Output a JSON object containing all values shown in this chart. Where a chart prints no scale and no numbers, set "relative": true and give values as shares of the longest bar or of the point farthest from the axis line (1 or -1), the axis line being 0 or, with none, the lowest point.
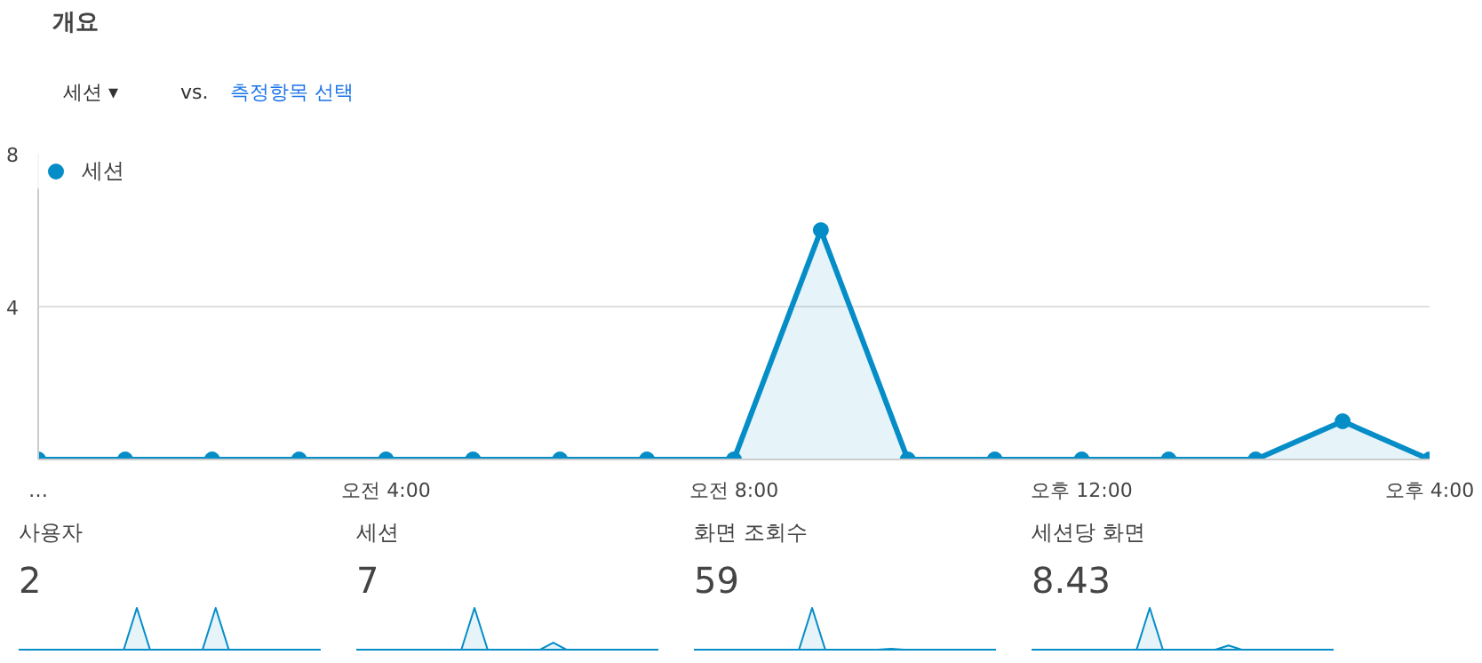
{
  "chart_data": [
    {
      "type": "area",
      "title": "개요",
      "annotations": [
        "세션 ▾",
        "vs.",
        "측정항목 선택"
      ],
      "categories": [
        "…",
        null,
        null,
        null,
        "오전 4:00",
        null,
        null,
        null,
        "오전 8:00",
        null,
        null,
        null,
        "오후 12:00",
        null,
        null,
        null,
        "오후 4:00"
      ],
      "series": [
        {
          "name": "세션",
          "color": "#058dc7",
          "values": [
            0,
            0,
            0,
            0,
            0,
            0,
            0,
            0,
            0,
            6,
            0,
            0,
            0,
            0,
            0,
            1,
            0
          ]
        }
      ],
      "ylim": [
        0,
        8
      ],
      "yticks": [
        4,
        8
      ],
      "grid": "y",
      "legend": "top left",
      "marker": "circle"
    },
    {
      "type": "area",
      "title": "사용자",
      "subtitle": "2",
      "relative": true,
      "tick_labels": false,
      "categories": [
        null,
        null,
        null,
        null,
        null,
        null,
        null,
        null,
        null,
        null,
        null,
        null,
        null,
        null,
        null,
        null,
        null,
        null,
        null,
        null,
        null,
        null,
        null,
        null
      ],
      "series": [
        {
          "color": "#058dc7",
          "values": [
            0,
            0,
            0,
            0,
            0,
            0,
            0,
            0,
            0,
            1,
            0,
            0,
            0,
            0,
            0,
            1,
            0,
            0,
            0,
            0,
            0,
            0,
            0,
            0
          ]
        }
      ]
    },
    {
      "type": "area",
      "title": "세션",
      "subtitle": "7",
      "relative": true,
      "tick_labels": false,
      "categories": [
        null,
        null,
        null,
        null,
        null,
        null,
        null,
        null,
        null,
        null,
        null,
        null,
        null,
        null,
        null,
        null,
        null,
        null,
        null,
        null,
        null,
        null,
        null,
        null
      ],
      "series": [
        {
          "color": "#058dc7",
          "values": [
            0,
            0,
            0,
            0,
            0,
            0,
            0,
            0,
            0,
            1,
            0,
            0,
            0,
            0,
            0,
            0.17,
            0,
            0,
            0,
            0,
            0,
            0,
            0,
            0
          ]
        }
      ]
    },
    {
      "type": "area",
      "title": "화면 조회수",
      "subtitle": "59",
      "relative": true,
      "tick_labels": false,
      "categories": [
        null,
        null,
        null,
        null,
        null,
        null,
        null,
        null,
        null,
        null,
        null,
        null,
        null,
        null,
        null,
        null,
        null,
        null,
        null,
        null,
        null,
        null,
        null,
        null
      ],
      "series": [
        {
          "color": "#058dc7",
          "values": [
            0,
            0,
            0,
            0,
            0,
            0,
            0,
            0,
            0,
            1,
            0,
            0,
            0,
            0,
            0,
            0.02,
            0,
            0,
            0,
            0,
            0,
            0,
            0,
            0
          ]
        }
      ]
    },
    {
      "type": "area",
      "title": "세션당 화면",
      "subtitle": "8.43",
      "relative": true,
      "tick_labels": false,
      "categories": [
        null,
        null,
        null,
        null,
        null,
        null,
        null,
        null,
        null,
        null,
        null,
        null,
        null,
        null,
        null,
        null,
        null,
        null,
        null,
        null,
        null,
        null,
        null,
        null
      ],
      "series": [
        {
          "color": "#058dc7",
          "values": [
            0,
            0,
            0,
            0,
            0,
            0,
            0,
            0,
            0,
            1,
            0,
            0,
            0,
            0,
            0,
            0.1,
            0,
            0,
            0,
            0,
            0,
            0,
            0,
            0
          ]
        }
      ]
    }
  ]
}
